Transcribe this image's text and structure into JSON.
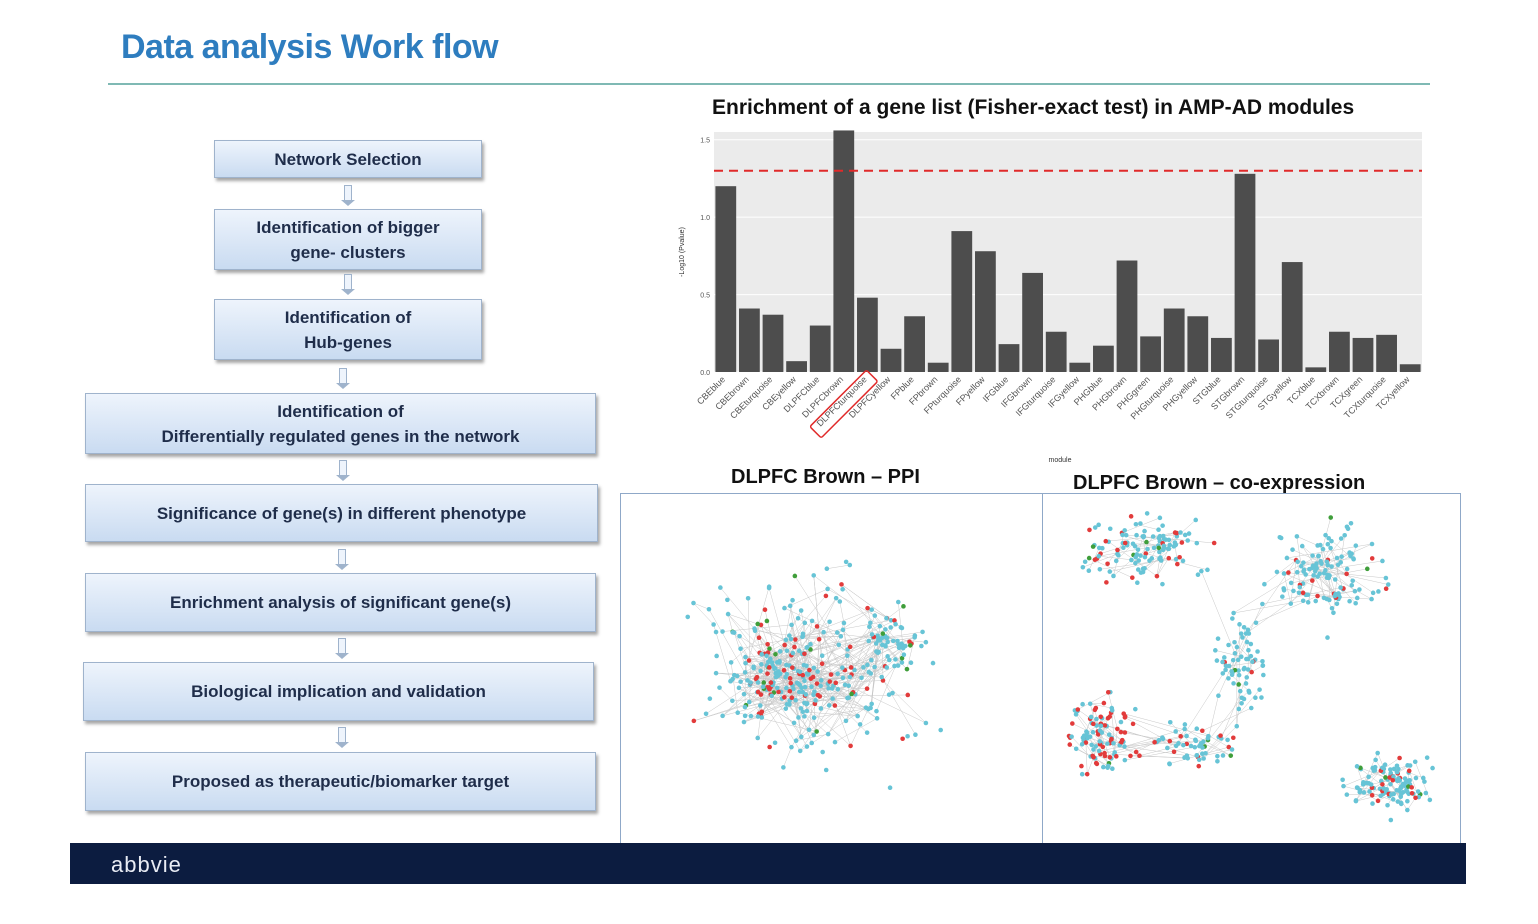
{
  "slide": {
    "title": "Data analysis Work flow"
  },
  "workflow": {
    "steps": [
      "Network Selection",
      "Identification of bigger\ngene- clusters",
      "Identification of\nHub-genes",
      "Identification of\nDifferentially regulated genes in the network",
      "Significance of gene(s) in different phenotype",
      "Enrichment analysis of significant gene(s)",
      "Biological implication and validation",
      "Proposed as therapeutic/biomarker target"
    ]
  },
  "chart_data": {
    "type": "bar",
    "title": "Enrichment of a gene list (Fisher-exact test) in AMP-AD modules",
    "xlabel": "module",
    "ylabel": "-Log10 (Pvalue)",
    "ylim": [
      0,
      1.55
    ],
    "yticks": [
      "0.0",
      "0.5",
      "1.0",
      "1.5"
    ],
    "threshold": 1.3,
    "highlighted_category": "DLPFCbrown",
    "categories": [
      "CBEblue",
      "CBEbrown",
      "CBEturquoise",
      "CBEyellow",
      "DLPFCblue",
      "DLPFCbrown",
      "DLPFCturquoise",
      "DLPFCyellow",
      "FPblue",
      "FPbrown",
      "FPturquoise",
      "FPyellow",
      "IFGblue",
      "IFGbrown",
      "IFGturquoise",
      "IFGyellow",
      "PHGblue",
      "PHGbrown",
      "PHGgreen",
      "PHGturquoise",
      "PHGyellow",
      "STGblue",
      "STGbrown",
      "STGturquoise",
      "STGyellow",
      "TCXblue",
      "TCXbrown",
      "TCXgreen",
      "TCXturquoise",
      "TCXyellow"
    ],
    "values": [
      1.2,
      0.41,
      0.37,
      0.07,
      0.3,
      1.56,
      0.48,
      0.15,
      0.36,
      0.06,
      0.91,
      0.78,
      0.18,
      0.64,
      0.26,
      0.06,
      0.17,
      0.72,
      0.23,
      0.41,
      0.36,
      0.22,
      1.28,
      0.21,
      0.71,
      0.03,
      0.26,
      0.22,
      0.24,
      0.05
    ],
    "colors": {
      "bar": "#4d4d4d",
      "panel": "#ebebeb",
      "threshold": "#e02a2a",
      "highlight": "#e02a2a"
    }
  },
  "networks": {
    "ppi": {
      "title": "DLPFC Brown – PPI"
    },
    "coexpression": {
      "title": "DLPFC Brown – co-expression"
    },
    "colors": {
      "node_cyan": "#67c4d6",
      "node_red": "#e23b3b",
      "node_green": "#3f9e3a",
      "edge": "#c8c8c8"
    }
  },
  "footer": {
    "logo": "abbvie",
    "background": "#0c1c40"
  }
}
